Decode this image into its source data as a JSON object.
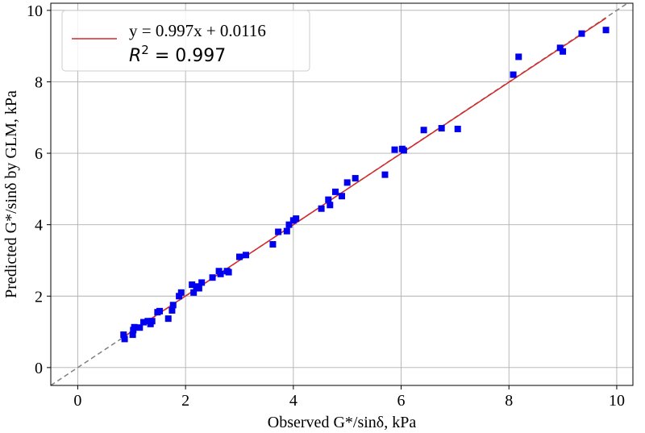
{
  "chart_data": {
    "type": "scatter",
    "xlabel": "Observed G*/sinδ, kPa",
    "ylabel": "Predicted G*/sinδ by GLM, kPa",
    "xlim": [
      -0.5,
      10.3
    ],
    "ylim": [
      -0.5,
      10.2
    ],
    "xticks": [
      0,
      2,
      4,
      6,
      8,
      10
    ],
    "yticks": [
      0,
      2,
      4,
      6,
      8,
      10
    ],
    "grid": true,
    "legend_position": "top-left",
    "fit_line": {
      "label": "y = 0.997x + 0.0116",
      "slope": 0.997,
      "intercept": 0.0116,
      "x_range": [
        0.85,
        9.8
      ],
      "color": "#d62728"
    },
    "r2_label_prefix": "R",
    "r2_label_sup": "2",
    "r2_label_value": " = 0.997",
    "reference_line": {
      "style": "dashed",
      "color": "#808080",
      "slope": 1,
      "intercept": 0
    },
    "marker_color": "#0000ee",
    "points": [
      [
        0.85,
        0.92
      ],
      [
        0.87,
        0.8
      ],
      [
        1.02,
        0.92
      ],
      [
        1.03,
        1.05
      ],
      [
        1.05,
        1.13
      ],
      [
        1.15,
        1.12
      ],
      [
        1.22,
        1.27
      ],
      [
        1.3,
        1.3
      ],
      [
        1.35,
        1.22
      ],
      [
        1.38,
        1.3
      ],
      [
        1.48,
        1.55
      ],
      [
        1.52,
        1.58
      ],
      [
        1.68,
        1.37
      ],
      [
        1.75,
        1.6
      ],
      [
        1.77,
        1.75
      ],
      [
        1.88,
        2.0
      ],
      [
        1.92,
        2.1
      ],
      [
        2.12,
        2.32
      ],
      [
        2.15,
        2.1
      ],
      [
        2.2,
        2.27
      ],
      [
        2.25,
        2.22
      ],
      [
        2.3,
        2.38
      ],
      [
        2.5,
        2.52
      ],
      [
        2.62,
        2.7
      ],
      [
        2.65,
        2.62
      ],
      [
        2.77,
        2.7
      ],
      [
        2.8,
        2.67
      ],
      [
        3.0,
        3.1
      ],
      [
        3.12,
        3.15
      ],
      [
        3.62,
        3.45
      ],
      [
        3.72,
        3.8
      ],
      [
        3.88,
        3.82
      ],
      [
        3.92,
        4.0
      ],
      [
        4.0,
        4.12
      ],
      [
        4.05,
        4.17
      ],
      [
        4.52,
        4.45
      ],
      [
        4.65,
        4.7
      ],
      [
        4.68,
        4.55
      ],
      [
        4.78,
        4.92
      ],
      [
        4.9,
        4.8
      ],
      [
        5.0,
        5.18
      ],
      [
        5.15,
        5.3
      ],
      [
        5.7,
        5.4
      ],
      [
        5.88,
        6.1
      ],
      [
        6.02,
        6.12
      ],
      [
        6.05,
        6.08
      ],
      [
        6.42,
        6.65
      ],
      [
        6.75,
        6.7
      ],
      [
        7.05,
        6.68
      ],
      [
        8.08,
        8.2
      ],
      [
        8.18,
        8.7
      ],
      [
        8.95,
        8.95
      ],
      [
        9.0,
        8.85
      ],
      [
        9.35,
        9.35
      ],
      [
        9.8,
        9.45
      ]
    ]
  }
}
